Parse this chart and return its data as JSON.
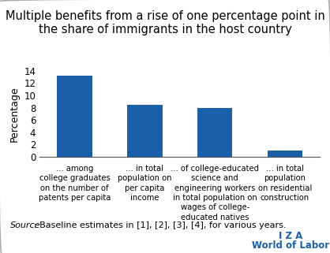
{
  "title": "Multiple benefits from a rise of one percentage point in\nthe share of immigrants in the host country",
  "bar_values": [
    13.2,
    8.5,
    8.0,
    1.0
  ],
  "bar_color": "#1a5fa8",
  "categories": [
    "... among\ncollege graduates\non the number of\npatents per capita",
    "... in total\npopulation on\nper capita\nincome",
    "... of college-educated\nscience and\nengineering workers\nin total population on\nwages of college-\neducated natives",
    "... in total\npopulation\non residential\nconstruction"
  ],
  "ylabel": "Percentage",
  "ylim": [
    0,
    14
  ],
  "yticks": [
    0,
    2,
    4,
    6,
    8,
    10,
    12,
    14
  ],
  "source_label": "Source",
  "source_rest": ": Baseline estimates in [1], [2], [3], [4], for various years.",
  "iza_text": "I Z A",
  "wol_text": "World of Labor",
  "iza_color": "#1a5fa8",
  "border_color": "#aaaaaa",
  "title_fontsize": 10.5,
  "axis_label_fontsize": 9,
  "tick_fontsize": 8.5,
  "source_fontsize": 8,
  "iza_fontsize": 8.5,
  "cat_fontsize": 7.2
}
